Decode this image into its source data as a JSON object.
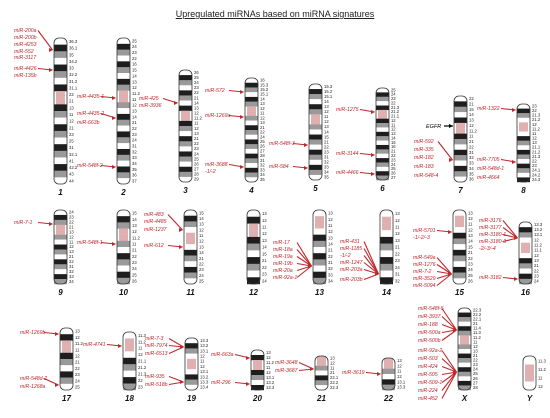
{
  "title": "Upregulated miRNAs based on miRNA signatures",
  "colors": {
    "mirna_text": "#c0282d",
    "arrow": "#c0282d",
    "band_dark": "#1e1e1e",
    "band_mid": "#9a9a9a",
    "band_light": "#d2d2d2",
    "centromere": "#e0b0b0",
    "gene_arrow": "#000000"
  },
  "gene_marker": {
    "chromosome": "7",
    "label": "EGFR"
  },
  "chromosomes": [
    {
      "id": "1",
      "label": "1",
      "bands": [
        "36.3",
        "36.1",
        "35",
        "34.2",
        "33",
        "32.2",
        "31.2",
        "31.1",
        "22",
        "21",
        "13",
        "11",
        "12",
        "21",
        "23",
        "25",
        "31",
        "32.1",
        "41",
        "42.2",
        "43",
        "44"
      ],
      "mirnas": [
        {
          "names": [
            "miR-200a",
            "miR-200b",
            "miR-4253",
            "miR-552",
            "miR-3117"
          ]
        },
        {
          "names": [
            "miR-4426",
            "miR-135b"
          ]
        }
      ]
    },
    {
      "id": "2",
      "label": "2",
      "bands": [
        "25",
        "24",
        "23",
        "22",
        "16",
        "15",
        "14",
        "13",
        "12",
        "11.2",
        "11",
        "12",
        "13",
        "14",
        "21",
        "22",
        "23",
        "24",
        "31",
        "32",
        "33",
        "34",
        "35",
        "36",
        "37"
      ],
      "mirnas": [
        {
          "names": [
            "miR-4435-1"
          ]
        },
        {
          "names": [
            "miR-4435-2",
            "miR-663b"
          ]
        },
        {
          "names": [
            "miR-548f-2"
          ]
        }
      ]
    },
    {
      "id": "3",
      "label": "3",
      "bands": [
        "26",
        "25",
        "24",
        "23",
        "22",
        "21",
        "14",
        "13",
        "12",
        "11.2",
        "11",
        "12",
        "13",
        "21",
        "22",
        "23",
        "24",
        "25",
        "26",
        "27",
        "28",
        "29"
      ],
      "mirnas": [
        {
          "names": [
            "miR-425",
            "miR-3936"
          ]
        }
      ]
    },
    {
      "id": "4",
      "label": "4",
      "bands": [
        "16",
        "15.3",
        "15.2",
        "15.1",
        "14",
        "13",
        "12",
        "11",
        "12",
        "13",
        "21",
        "22",
        "24",
        "25",
        "26",
        "27",
        "28",
        "31",
        "32",
        "33",
        "34",
        "35"
      ],
      "mirnas": [
        {
          "names": [
            "miR-572"
          ]
        },
        {
          "names": [
            "miR-1269a"
          ]
        },
        {
          "names": [
            "miR-3688",
            "-1/-2"
          ]
        }
      ]
    },
    {
      "id": "5",
      "label": "5",
      "bands": [
        "15.3",
        "15.2",
        "15.1",
        "14",
        "13",
        "12",
        "11",
        "12",
        "13",
        "14",
        "15",
        "21",
        "22",
        "23",
        "31",
        "32",
        "33",
        "34",
        "35"
      ],
      "mirnas": [
        {
          "names": [
            "miR-548f-3"
          ]
        },
        {
          "names": [
            "miR-584"
          ]
        }
      ]
    },
    {
      "id": "6",
      "label": "6",
      "bands": [
        "25",
        "24",
        "23",
        "22",
        "21.3",
        "21.2",
        "21.1",
        "12",
        "11",
        "12",
        "13",
        "14",
        "15",
        "16",
        "21",
        "22",
        "23",
        "24",
        "25",
        "26",
        "27"
      ],
      "mirnas": [
        {
          "names": [
            "miR-1275"
          ]
        },
        {
          "names": [
            "miR-3144"
          ]
        },
        {
          "names": [
            "miR-4466"
          ]
        }
      ]
    },
    {
      "id": "7",
      "label": "7",
      "bands": [
        "22",
        "21",
        "15",
        "14",
        "13",
        "12",
        "11.2",
        "11",
        "21",
        "22",
        "31",
        "32",
        "33",
        "34",
        "35",
        "36"
      ],
      "mirnas": [
        {
          "names": [
            "miR-592",
            "miR-335",
            "miR-182",
            "miR-183",
            "miR-548-4"
          ]
        }
      ]
    },
    {
      "id": "8",
      "label": "8",
      "bands": [
        "23",
        "22",
        "21.3",
        "21.2",
        "12",
        "11.2",
        "11",
        "12",
        "13",
        "21.1",
        "21.2",
        "21.3",
        "22",
        "23",
        "24.1",
        "24.2",
        "24.3"
      ],
      "mirnas": [
        {
          "names": [
            "miR-1322"
          ]
        },
        {
          "names": [
            "miR-7705",
            "miR-548d-1",
            "miR-4664"
          ]
        }
      ]
    },
    {
      "id": "9",
      "label": "9",
      "bands": [
        "24",
        "23",
        "22",
        "21",
        "13",
        "12",
        "11",
        "12",
        "13",
        "21",
        "22",
        "31",
        "32",
        "33",
        "34"
      ],
      "mirnas": [
        {
          "names": [
            "miR-7-1"
          ]
        }
      ]
    },
    {
      "id": "10",
      "label": "10",
      "bands": [
        "15",
        "14",
        "13",
        "12",
        "11.2",
        "11",
        "21",
        "22",
        "23",
        "24",
        "25",
        "26"
      ],
      "mirnas": [
        {
          "names": [
            "miR-548f-1"
          ]
        }
      ]
    },
    {
      "id": "11",
      "label": "11",
      "bands": [
        "15",
        "14",
        "13",
        "12",
        "11",
        "12",
        "13",
        "14",
        "21",
        "22",
        "23",
        "24",
        "25"
      ],
      "mirnas": [
        {
          "names": [
            "miR-483",
            "miR-4485",
            "miR-1237"
          ]
        },
        {
          "names": [
            "miR-612"
          ]
        }
      ]
    },
    {
      "id": "12",
      "label": "12",
      "bands": [
        "13",
        "12",
        "11",
        "12",
        "13",
        "14",
        "15",
        "21",
        "22",
        "23",
        "24"
      ],
      "mirnas": []
    },
    {
      "id": "13",
      "label": "13",
      "bands": [
        "13",
        "12",
        "11",
        "12",
        "13",
        "14",
        "21",
        "22",
        "31",
        "32",
        "33",
        "34"
      ],
      "mirnas": [
        {
          "names": [
            "miR-17",
            "miR-18a",
            "miR-19a",
            "miR-19b",
            "miR-20a",
            "miR-92a-1"
          ]
        }
      ]
    },
    {
      "id": "14",
      "label": "14",
      "bands": [
        "13",
        "12",
        "11",
        "12",
        "13",
        "21",
        "22",
        "23",
        "24",
        "31",
        "32"
      ],
      "mirnas": [
        {
          "names": [
            "miR-431",
            "miR-1185",
            "-1/-2",
            "miR-1247",
            "miR-203a",
            "miR-203b"
          ]
        }
      ]
    },
    {
      "id": "15",
      "label": "15",
      "bands": [
        "13",
        "12",
        "11",
        "12",
        "13",
        "14",
        "15",
        "21",
        "22",
        "23",
        "24",
        "25",
        "26"
      ],
      "mirnas": [
        {
          "names": [
            "miR-5701",
            "-1/-2/-3"
          ]
        },
        {
          "names": [
            "miR-549a",
            "miR-1276",
            "miR-7-2",
            "miR-3529",
            "miR-5094"
          ]
        }
      ]
    },
    {
      "id": "16",
      "label": "16",
      "bands": [
        "13.3",
        "13.2",
        "13.1",
        "12",
        "11.2",
        "11.1",
        "12",
        "13",
        "21",
        "22",
        "23",
        "24"
      ],
      "mirnas": [
        {
          "names": [
            "miR-3176",
            "miR-3177",
            "miR-3180-1",
            "miR-3180-3",
            "-2/-3/-4"
          ]
        },
        {
          "names": [
            "miR-3182"
          ]
        }
      ]
    },
    {
      "id": "17",
      "label": "17",
      "bands": [
        "13",
        "12",
        "11.2",
        "11",
        "12",
        "21",
        "22",
        "23",
        "24",
        "25"
      ],
      "mirnas": [
        {
          "names": [
            "miR-1269b"
          ]
        },
        {
          "names": [
            "miR-548d-2",
            "miR-1268a"
          ]
        }
      ]
    },
    {
      "id": "18",
      "label": "18",
      "bands": [
        "11.3",
        "11.2",
        "11",
        "12",
        "21.1",
        "21.2",
        "21.3",
        "22",
        "23"
      ],
      "mirnas": [
        {
          "names": [
            "miR-4741"
          ]
        }
      ]
    },
    {
      "id": "19",
      "label": "19",
      "bands": [
        "13.3",
        "13.2",
        "13.1",
        "12",
        "11",
        "12",
        "13.1",
        "13.2",
        "13.3",
        "13.4"
      ],
      "mirnas": [
        {
          "names": [
            "miR-7-3",
            "miR-7974",
            "miR-6513"
          ]
        },
        {
          "names": [
            "miR-935",
            "miR-518b"
          ]
        }
      ]
    },
    {
      "id": "20",
      "label": "20",
      "bands": [
        "13",
        "12",
        "11.2",
        "11",
        "12",
        "13.1",
        "13.2",
        "13.3"
      ],
      "mirnas": [
        {
          "names": [
            "miR-663a"
          ]
        },
        {
          "names": [
            "miR-296"
          ]
        }
      ]
    },
    {
      "id": "21",
      "label": "21",
      "bands": [
        "13",
        "12",
        "11",
        "21",
        "22.1",
        "22.2",
        "22.3"
      ],
      "mirnas": [
        {
          "names": [
            "miR-3648",
            "miR-3687"
          ]
        }
      ]
    },
    {
      "id": "22",
      "label": "22",
      "bands": [
        "13",
        "12",
        "11",
        "12",
        "13.1",
        "13.3"
      ],
      "mirnas": [
        {
          "names": [
            "miR-3619"
          ]
        }
      ]
    },
    {
      "id": "X",
      "label": "X",
      "bands": [
        "22.3",
        "22.2",
        "22.1",
        "21",
        "11.4",
        "11.3",
        "11.2",
        "11",
        "12",
        "13",
        "21",
        "22",
        "23",
        "24",
        "25",
        "26",
        "27",
        "28"
      ],
      "mirnas": [
        {
          "names": [
            "miR-548f-5",
            "miR-3937",
            "miR-188",
            "miR-500a",
            "miR-500b"
          ]
        },
        {
          "names": [
            "miR-92a-2",
            "miR-503",
            "miR-424",
            "miR-505",
            "miR-509-1",
            "miR-224",
            "miR-452"
          ]
        }
      ]
    },
    {
      "id": "Y",
      "label": "Y",
      "bands": [
        "11.3",
        "11.2",
        "11",
        "12"
      ],
      "mirnas": []
    }
  ]
}
